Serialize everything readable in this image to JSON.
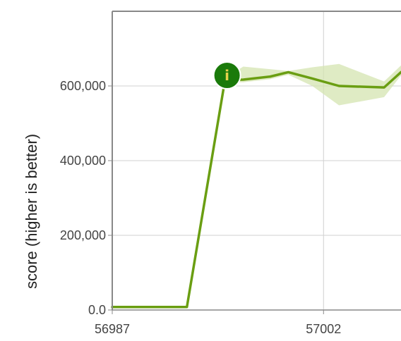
{
  "chart_data": {
    "type": "line",
    "ylabel": "score (higher is better)",
    "xlim": [
      56987,
      57007.5
    ],
    "ylim": [
      0,
      800000
    ],
    "x_ticks": [
      {
        "value": 56987,
        "label": "56987"
      },
      {
        "value": 57002,
        "label": "57002"
      }
    ],
    "y_ticks": [
      {
        "value": 0,
        "label": "0.0"
      },
      {
        "value": 200000,
        "label": "200,000"
      },
      {
        "value": 400000,
        "label": "400,000"
      },
      {
        "value": 600000,
        "label": "600,000"
      }
    ],
    "grid": true,
    "series": [
      {
        "color": "#6a9e12",
        "band_color": "#d4e4b0",
        "x": [
          56987,
          56992.3,
          56995,
          56996.3,
          56998.2,
          56999.5,
          57001.2,
          57003.1,
          57006.3,
          57007.5
        ],
        "y": [
          8000,
          8000,
          615000,
          617000,
          625000,
          637000,
          620000,
          600000,
          596000,
          637000
        ],
        "upper": [
          8000,
          8000,
          620000,
          652000,
          645000,
          640000,
          650000,
          659000,
          612000,
          655000
        ],
        "lower": [
          8000,
          8000,
          610000,
          610000,
          618000,
          630000,
          600000,
          548000,
          570000,
          628000
        ]
      }
    ],
    "annotations": [
      {
        "x": 56995,
        "y": 615000,
        "text": "i",
        "color": "#1a7a0a"
      }
    ]
  }
}
